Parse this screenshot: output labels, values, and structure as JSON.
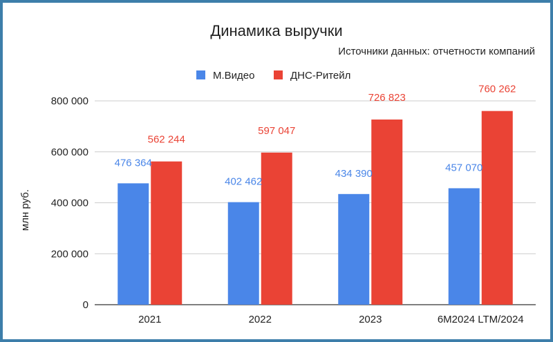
{
  "chart_data": {
    "type": "bar",
    "title": "Динамика выручки",
    "subtitle": "Источники данных: отчетности компаний",
    "ylabel": "млн руб.",
    "xlabel": "",
    "categories": [
      "2021",
      "2022",
      "2023",
      "6M2024 LTM/2024"
    ],
    "series": [
      {
        "name": "М.Видео",
        "color": "#4a86e8",
        "values": [
          476364,
          402462,
          434390,
          457070
        ],
        "labels": [
          "476 364",
          "402 462",
          "434 390",
          "457 070"
        ]
      },
      {
        "name": "ДНС-Ритейл",
        "color": "#ea4335",
        "values": [
          562244,
          597047,
          726823,
          760262
        ],
        "labels": [
          "562 244",
          "597 047",
          "726 823",
          "760 262"
        ]
      }
    ],
    "ylim": [
      0,
      800000
    ],
    "yticks": [
      0,
      200000,
      400000,
      600000,
      800000
    ],
    "ytick_labels": [
      "0",
      "200 000",
      "400 000",
      "600 000",
      "800 000"
    ],
    "grid": true,
    "legend_position": "top-center"
  }
}
